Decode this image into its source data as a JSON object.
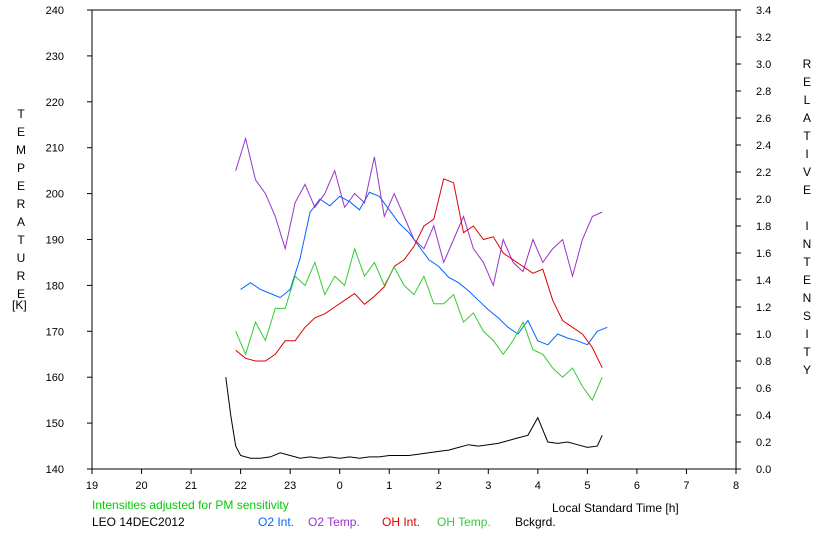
{
  "chart_data": {
    "type": "line",
    "title": "",
    "xlabel": "Local Standard Time [h]",
    "ylabel_left": "TEMPERATURE",
    "ylabel_left_unit": "[K]",
    "ylabel_right": "RELATIVE INTENSITY",
    "x_ticks": [
      "19",
      "20",
      "21",
      "22",
      "23",
      "0",
      "1",
      "2",
      "3",
      "4",
      "5",
      "6",
      "7",
      "8"
    ],
    "xlim": [
      19,
      32
    ],
    "ylim_left": [
      140,
      240
    ],
    "ylim_right": [
      0.0,
      3.4
    ],
    "y_ticks_left": [
      "140",
      "150",
      "160",
      "170",
      "180",
      "190",
      "200",
      "210",
      "220",
      "230",
      "240"
    ],
    "y_ticks_right": [
      "0.0",
      "0.2",
      "0.4",
      "0.6",
      "0.8",
      "1.0",
      "1.2",
      "1.4",
      "1.6",
      "1.8",
      "2.0",
      "2.2",
      "2.4",
      "2.6",
      "2.8",
      "3.0",
      "3.2",
      "3.4"
    ],
    "note": "Intensities adjusted for PM sensitivity",
    "station": "LEO 14DEC2012",
    "colors": {
      "o2_int": "#0066ff",
      "o2_temp": "#9933cc",
      "oh_int": "#dd0000",
      "oh_temp": "#33cc33",
      "bckgrd": "#000000",
      "note": "#00cc00"
    },
    "series": [
      {
        "name": "O2 Int.",
        "axis": "right",
        "color": "#0066ff",
        "x": [
          22.0,
          22.2,
          22.4,
          22.6,
          22.8,
          23.0,
          23.2,
          23.4,
          23.6,
          23.8,
          24.0,
          24.2,
          24.4,
          24.6,
          24.8,
          25.0,
          25.2,
          25.4,
          25.6,
          25.8,
          26.0,
          26.2,
          26.4,
          26.6,
          26.8,
          27.0,
          27.2,
          27.4,
          27.6,
          27.8,
          28.0,
          28.2,
          28.4,
          28.6,
          28.8,
          29.0,
          29.2,
          29.4
        ],
        "y": [
          1.33,
          1.38,
          1.33,
          1.3,
          1.27,
          1.33,
          1.56,
          1.9,
          2.0,
          1.95,
          2.02,
          1.98,
          1.92,
          2.05,
          2.02,
          1.92,
          1.82,
          1.75,
          1.65,
          1.55,
          1.5,
          1.42,
          1.38,
          1.32,
          1.25,
          1.18,
          1.12,
          1.05,
          1.0,
          1.1,
          0.95,
          0.92,
          1.0,
          0.97,
          0.95,
          0.92,
          1.02,
          1.05
        ]
      },
      {
        "name": "O2 Temp.",
        "axis": "left",
        "color": "#9933cc",
        "x": [
          21.9,
          22.1,
          22.3,
          22.5,
          22.7,
          22.9,
          23.1,
          23.3,
          23.5,
          23.7,
          23.9,
          24.1,
          24.3,
          24.5,
          24.7,
          24.9,
          25.1,
          25.3,
          25.5,
          25.7,
          25.9,
          26.1,
          26.3,
          26.5,
          26.7,
          26.9,
          27.1,
          27.3,
          27.5,
          27.7,
          27.9,
          28.1,
          28.3,
          28.5,
          28.7,
          28.9,
          29.1,
          29.3
        ],
        "y": [
          205,
          212,
          203,
          200,
          195,
          188,
          198,
          202,
          197,
          200,
          205,
          197,
          200,
          198,
          208,
          195,
          200,
          195,
          190,
          188,
          193,
          185,
          190,
          195,
          188,
          185,
          180,
          190,
          185,
          183,
          190,
          185,
          188,
          190,
          182,
          190,
          195,
          196
        ]
      },
      {
        "name": "OH Int.",
        "axis": "right",
        "color": "#dd0000",
        "x": [
          21.9,
          22.1,
          22.3,
          22.5,
          22.7,
          22.9,
          23.1,
          23.3,
          23.5,
          23.7,
          23.9,
          24.1,
          24.3,
          24.5,
          24.7,
          24.9,
          25.1,
          25.3,
          25.5,
          25.7,
          25.9,
          26.1,
          26.3,
          26.5,
          26.7,
          26.9,
          27.1,
          27.3,
          27.5,
          27.7,
          27.9,
          28.1,
          28.3,
          28.5,
          28.7,
          28.9,
          29.1,
          29.3
        ],
        "y": [
          0.88,
          0.82,
          0.8,
          0.8,
          0.85,
          0.95,
          0.95,
          1.05,
          1.12,
          1.15,
          1.2,
          1.25,
          1.3,
          1.22,
          1.28,
          1.35,
          1.5,
          1.55,
          1.65,
          1.8,
          1.85,
          2.15,
          2.12,
          1.75,
          1.8,
          1.7,
          1.72,
          1.6,
          1.55,
          1.5,
          1.45,
          1.48,
          1.25,
          1.1,
          1.05,
          1.0,
          0.9,
          0.75
        ]
      },
      {
        "name": "OH Temp.",
        "axis": "left",
        "color": "#33cc33",
        "x": [
          21.9,
          22.1,
          22.3,
          22.5,
          22.7,
          22.9,
          23.1,
          23.3,
          23.5,
          23.7,
          23.9,
          24.1,
          24.3,
          24.5,
          24.7,
          24.9,
          25.1,
          25.3,
          25.5,
          25.7,
          25.9,
          26.1,
          26.3,
          26.5,
          26.7,
          26.9,
          27.1,
          27.3,
          27.5,
          27.7,
          27.9,
          28.1,
          28.3,
          28.5,
          28.7,
          28.9,
          29.1,
          29.3
        ],
        "y": [
          170,
          165,
          172,
          168,
          175,
          175,
          182,
          180,
          185,
          178,
          182,
          180,
          188,
          182,
          185,
          180,
          184,
          180,
          178,
          182,
          176,
          176,
          178,
          172,
          174,
          170,
          168,
          165,
          168,
          172,
          166,
          165,
          162,
          160,
          162,
          158,
          155,
          160
        ]
      },
      {
        "name": "Bckgrd.",
        "axis": "right",
        "color": "#000000",
        "x": [
          21.7,
          21.8,
          21.9,
          22.0,
          22.2,
          22.4,
          22.6,
          22.8,
          23.0,
          23.2,
          23.4,
          23.6,
          23.8,
          24.0,
          24.2,
          24.4,
          24.6,
          24.8,
          25.0,
          25.2,
          25.4,
          25.6,
          25.8,
          26.0,
          26.2,
          26.4,
          26.6,
          26.8,
          27.0,
          27.2,
          27.4,
          27.6,
          27.8,
          28.0,
          28.2,
          28.4,
          28.6,
          28.8,
          29.0,
          29.2,
          29.3
        ],
        "y": [
          0.68,
          0.4,
          0.17,
          0.1,
          0.08,
          0.08,
          0.09,
          0.12,
          0.1,
          0.08,
          0.09,
          0.08,
          0.09,
          0.08,
          0.09,
          0.08,
          0.09,
          0.09,
          0.1,
          0.1,
          0.1,
          0.11,
          0.12,
          0.13,
          0.14,
          0.16,
          0.18,
          0.17,
          0.18,
          0.19,
          0.21,
          0.23,
          0.25,
          0.38,
          0.2,
          0.19,
          0.2,
          0.18,
          0.16,
          0.17,
          0.25
        ]
      }
    ]
  }
}
